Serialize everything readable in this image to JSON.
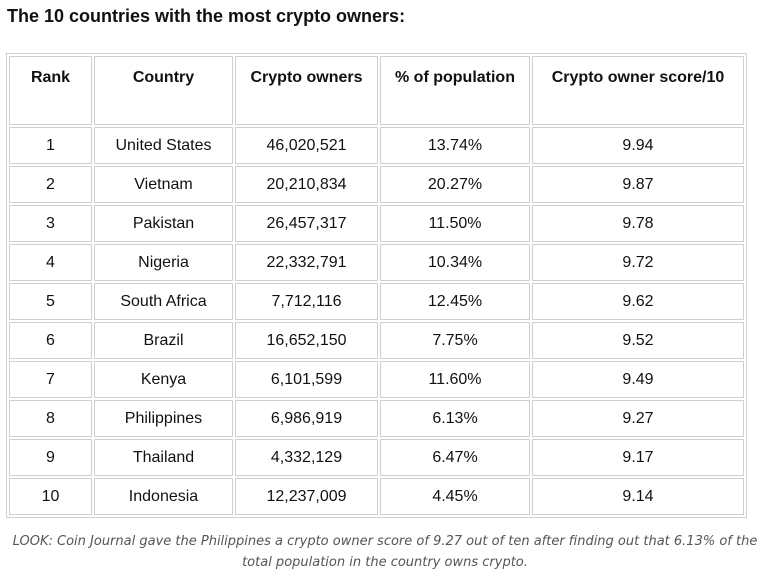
{
  "title": "The 10 countries with the most crypto owners:",
  "table": {
    "headers": [
      "Rank",
      "Country",
      "Crypto owners",
      "% of population",
      "Crypto owner score/10"
    ],
    "rows": [
      [
        "1",
        "United States",
        "46,020,521",
        "13.74%",
        "9.94"
      ],
      [
        "2",
        "Vietnam",
        "20,210,834",
        "20.27%",
        "9.87"
      ],
      [
        "3",
        "Pakistan",
        "26,457,317",
        "11.50%",
        "9.78"
      ],
      [
        "4",
        "Nigeria",
        "22,332,791",
        "10.34%",
        "9.72"
      ],
      [
        "5",
        "South Africa",
        "7,712,116",
        "12.45%",
        "9.62"
      ],
      [
        "6",
        "Brazil",
        "16,652,150",
        "7.75%",
        "9.52"
      ],
      [
        "7",
        "Kenya",
        "6,101,599",
        "11.60%",
        "9.49"
      ],
      [
        "8",
        "Philippines",
        "6,986,919",
        "6.13%",
        "9.27"
      ],
      [
        "9",
        "Thailand",
        "4,332,129",
        "6.47%",
        "9.17"
      ],
      [
        "10",
        "Indonesia",
        "12,237,009",
        "4.45%",
        "9.14"
      ]
    ]
  },
  "caption": "LOOK: Coin Journal gave the Philippines a crypto owner score of 9.27 out of ten after finding out that 6.13% of the total population in the country owns crypto."
}
